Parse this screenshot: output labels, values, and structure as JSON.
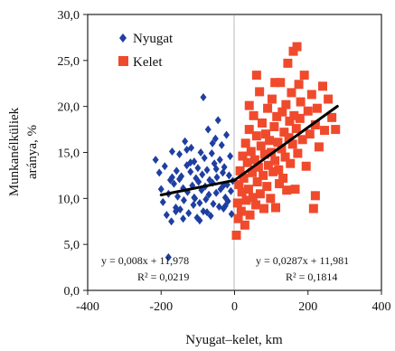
{
  "chart_data": {
    "type": "scatter",
    "xlabel": "Nyugat–kelet, km",
    "ylabel_line1": "Munkanélküliek",
    "ylabel_line2": "aránya, %",
    "xlim": [
      -400,
      400
    ],
    "ylim": [
      0,
      30
    ],
    "x_ticks": [
      "-400",
      "-200",
      "0",
      "200",
      "400"
    ],
    "y_ticks": [
      "0,0",
      "5,0",
      "10,0",
      "15,0",
      "20,0",
      "25,0",
      "30,0"
    ],
    "grid": false,
    "legend_position": "top-left",
    "colors": {
      "Nyugat": "#1f3fa0",
      "Kelet": "#f04a2c",
      "trend": "#000000"
    },
    "series": [
      {
        "name": "Nyugat",
        "marker": "diamond",
        "points": [
          [
            -215,
            14.2
          ],
          [
            -205,
            12.8
          ],
          [
            -200,
            11.0
          ],
          [
            -195,
            9.6
          ],
          [
            -190,
            13.5
          ],
          [
            -185,
            8.2
          ],
          [
            -180,
            10.5
          ],
          [
            -175,
            12.0
          ],
          [
            -172,
            7.5
          ],
          [
            -170,
            15.1
          ],
          [
            -165,
            11.6
          ],
          [
            -160,
            9.0
          ],
          [
            -158,
            13.0
          ],
          [
            -155,
            10.2
          ],
          [
            -150,
            14.8
          ],
          [
            -148,
            8.8
          ],
          [
            -145,
            12.4
          ],
          [
            -140,
            11.1
          ],
          [
            -138,
            9.8
          ],
          [
            -135,
            16.2
          ],
          [
            -130,
            13.6
          ],
          [
            -128,
            10.7
          ],
          [
            -125,
            8.4
          ],
          [
            -120,
            12.9
          ],
          [
            -118,
            15.5
          ],
          [
            -115,
            11.4
          ],
          [
            -112,
            9.3
          ],
          [
            -110,
            14.0
          ],
          [
            -108,
            10.0
          ],
          [
            -105,
            12.2
          ],
          [
            -102,
            7.9
          ],
          [
            -100,
            13.3
          ],
          [
            -98,
            11.8
          ],
          [
            -95,
            9.5
          ],
          [
            -92,
            15.0
          ],
          [
            -90,
            10.9
          ],
          [
            -88,
            12.6
          ],
          [
            -85,
            8.6
          ],
          [
            -82,
            14.4
          ],
          [
            -80,
            11.3
          ],
          [
            -78,
            9.9
          ],
          [
            -75,
            13.1
          ],
          [
            -72,
            17.5
          ],
          [
            -70,
            10.4
          ],
          [
            -68,
            12.0
          ],
          [
            -65,
            8.1
          ],
          [
            -62,
            14.9
          ],
          [
            -60,
            11.7
          ],
          [
            -58,
            9.4
          ],
          [
            -55,
            13.8
          ],
          [
            -52,
            16.5
          ],
          [
            -50,
            10.6
          ],
          [
            -48,
            12.3
          ],
          [
            -45,
            18.5
          ],
          [
            -42,
            9.1
          ],
          [
            -40,
            14.2
          ],
          [
            -38,
            11.0
          ],
          [
            -35,
            15.8
          ],
          [
            -32,
            12.8
          ],
          [
            -30,
            8.9
          ],
          [
            -28,
            13.4
          ],
          [
            -25,
            10.1
          ],
          [
            -22,
            16.9
          ],
          [
            -20,
            11.5
          ],
          [
            -18,
            9.7
          ],
          [
            -15,
            12.5
          ],
          [
            -12,
            14.6
          ],
          [
            -10,
            10.8
          ],
          [
            -8,
            8.3
          ],
          [
            -5,
            11.9
          ],
          [
            -160,
            8.6
          ],
          [
            -140,
            7.8
          ],
          [
            -120,
            13.9
          ],
          [
            -95,
            7.6
          ],
          [
            -150,
            12.1
          ],
          [
            -110,
            10.1
          ],
          [
            -75,
            8.5
          ],
          [
            -50,
            13.2
          ],
          [
            -30,
            11.4
          ],
          [
            -85,
            21.0
          ],
          [
            -170,
            12.3
          ],
          [
            -60,
            16.0
          ],
          [
            -130,
            15.3
          ],
          [
            -25,
            9.2
          ],
          [
            -180,
            3.6
          ]
        ]
      },
      {
        "name": "Kelet",
        "marker": "square",
        "points": [
          [
            5,
            6.0
          ],
          [
            8,
            9.5
          ],
          [
            10,
            7.8
          ],
          [
            12,
            11.5
          ],
          [
            15,
            13.0
          ],
          [
            18,
            8.6
          ],
          [
            20,
            10.7
          ],
          [
            22,
            14.6
          ],
          [
            25,
            12.2
          ],
          [
            28,
            7.1
          ],
          [
            30,
            16.0
          ],
          [
            32,
            9.8
          ],
          [
            35,
            13.9
          ],
          [
            38,
            11.0
          ],
          [
            40,
            17.5
          ],
          [
            42,
            8.2
          ],
          [
            45,
            15.1
          ],
          [
            48,
            12.8
          ],
          [
            50,
            10.1
          ],
          [
            52,
            19.0
          ],
          [
            55,
            14.2
          ],
          [
            58,
            9.3
          ],
          [
            60,
            16.8
          ],
          [
            62,
            11.8
          ],
          [
            65,
            13.4
          ],
          [
            68,
            21.6
          ],
          [
            70,
            10.5
          ],
          [
            72,
            15.7
          ],
          [
            75,
            18.2
          ],
          [
            78,
            12.5
          ],
          [
            80,
            8.9
          ],
          [
            82,
            14.8
          ],
          [
            85,
            17.0
          ],
          [
            88,
            11.3
          ],
          [
            90,
            19.8
          ],
          [
            92,
            13.6
          ],
          [
            95,
            16.3
          ],
          [
            98,
            10.0
          ],
          [
            100,
            15.0
          ],
          [
            102,
            20.8
          ],
          [
            105,
            12.9
          ],
          [
            108,
            17.8
          ],
          [
            110,
            14.1
          ],
          [
            112,
            9.0
          ],
          [
            115,
            18.9
          ],
          [
            118,
            16.1
          ],
          [
            120,
            13.1
          ],
          [
            122,
            11.6
          ],
          [
            125,
            22.6
          ],
          [
            128,
            15.4
          ],
          [
            130,
            19.4
          ],
          [
            132,
            12.2
          ],
          [
            135,
            17.2
          ],
          [
            138,
            14.5
          ],
          [
            140,
            20.2
          ],
          [
            142,
            10.9
          ],
          [
            145,
            24.7
          ],
          [
            148,
            16.6
          ],
          [
            150,
            18.4
          ],
          [
            152,
            13.8
          ],
          [
            155,
            21.5
          ],
          [
            158,
            15.9
          ],
          [
            160,
            26.0
          ],
          [
            162,
            19.0
          ],
          [
            165,
            11.0
          ],
          [
            168,
            17.6
          ],
          [
            170,
            26.5
          ],
          [
            172,
            14.9
          ],
          [
            175,
            22.4
          ],
          [
            178,
            18.7
          ],
          [
            180,
            20.5
          ],
          [
            185,
            16.4
          ],
          [
            190,
            23.4
          ],
          [
            195,
            13.5
          ],
          [
            200,
            19.5
          ],
          [
            205,
            17.0
          ],
          [
            210,
            21.3
          ],
          [
            215,
            8.9
          ],
          [
            220,
            18.0
          ],
          [
            225,
            19.8
          ],
          [
            230,
            15.6
          ],
          [
            240,
            22.2
          ],
          [
            245,
            17.4
          ],
          [
            255,
            20.8
          ],
          [
            265,
            18.8
          ],
          [
            275,
            17.5
          ],
          [
            220,
            10.3
          ],
          [
            60,
            23.4
          ],
          [
            40,
            20.1
          ],
          [
            110,
            22.6
          ]
        ]
      }
    ],
    "trendlines": [
      {
        "series": "Nyugat",
        "x": [
          -200,
          0
        ],
        "slope": 0.008,
        "intercept": 11.978,
        "equation": "y = 0,008x + 11,978",
        "r2": "R² = 0,0219"
      },
      {
        "series": "Kelet",
        "x": [
          0,
          280
        ],
        "slope": 0.0287,
        "intercept": 11.981,
        "equation": "y = 0,0287x + 11,981",
        "r2": "R² = 0,1814"
      }
    ]
  }
}
